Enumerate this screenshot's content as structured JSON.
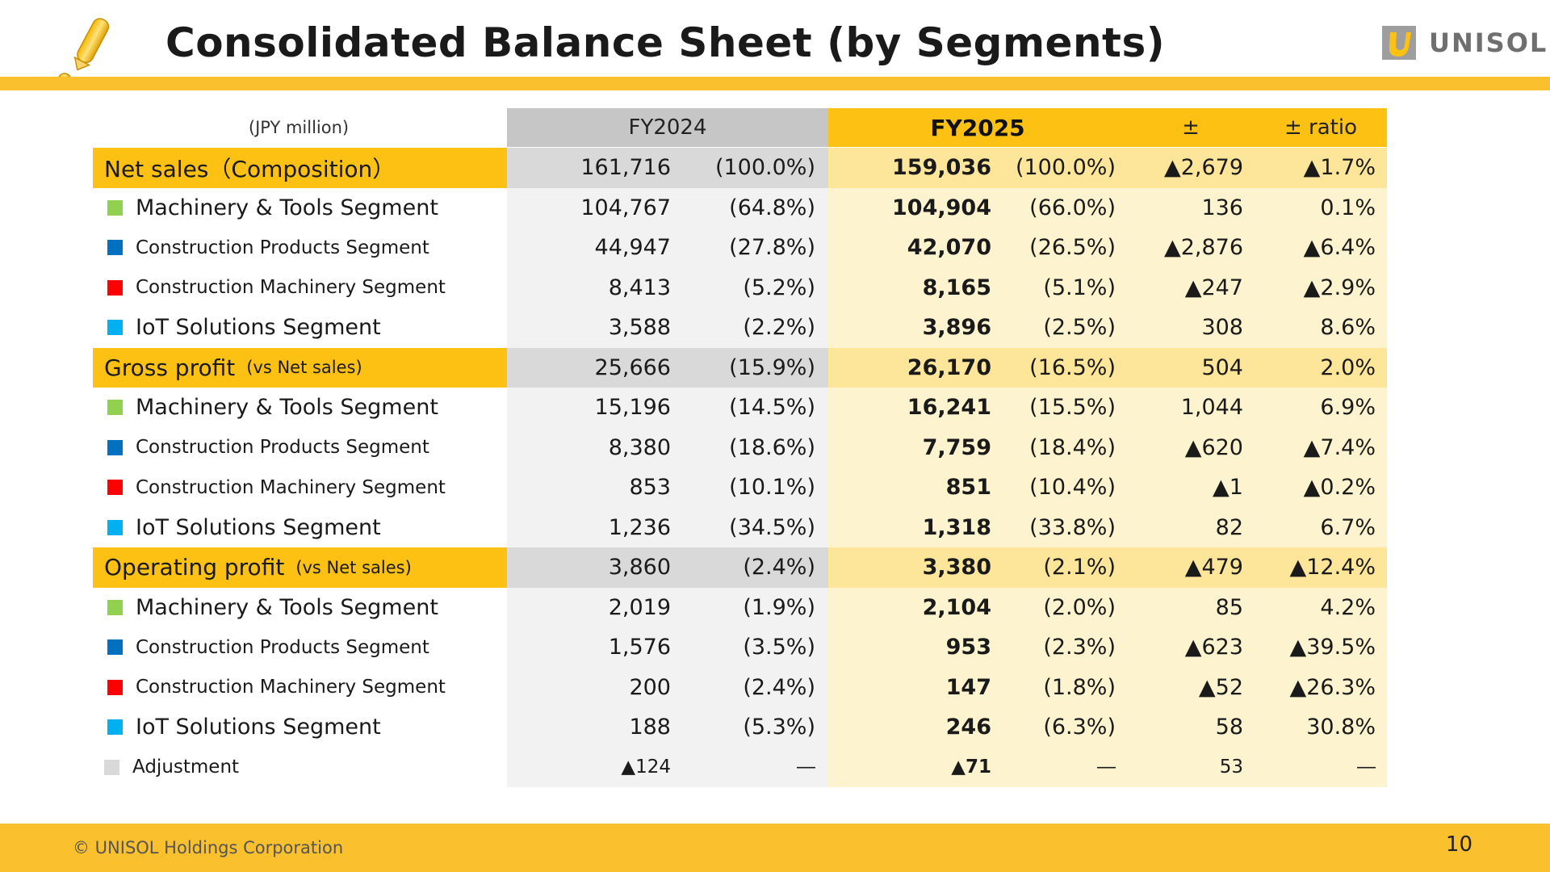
{
  "header": {
    "title": "Consolidated Balance Sheet (by Segments)",
    "logo_text": "UNISOL"
  },
  "table": {
    "unit": "(JPY million)",
    "columns": {
      "fy2024": "FY2024",
      "fy2025": "FY2025",
      "diff": "±",
      "ratio": "± ratio"
    },
    "rows": [
      {
        "kind": "main",
        "label": "Net sales（Composition）",
        "note": "",
        "v24": "161,716",
        "p24": "(100.0%)",
        "v25": "159,036",
        "p25": "(100.0%)",
        "diff": "▲2,679",
        "ratio": "▲1.7%"
      },
      {
        "kind": "sub",
        "label": "Machinery & Tools Segment",
        "size": "large",
        "color": "#92d050",
        "v24": "104,767",
        "p24": "(64.8%)",
        "v25": "104,904",
        "p25": "(66.0%)",
        "diff": "136",
        "ratio": "0.1%"
      },
      {
        "kind": "sub",
        "label": "Construction Products Segment",
        "size": "small",
        "color": "#0070c0",
        "v24": "44,947",
        "p24": "(27.8%)",
        "v25": "42,070",
        "p25": "(26.5%)",
        "diff": "▲2,876",
        "ratio": "▲6.4%"
      },
      {
        "kind": "sub",
        "label": "Construction Machinery Segment",
        "size": "small",
        "color": "#ff0000",
        "v24": "8,413",
        "p24": "(5.2%)",
        "v25": "8,165",
        "p25": "(5.1%)",
        "diff": "▲247",
        "ratio": "▲2.9%"
      },
      {
        "kind": "sub",
        "label": "IoT Solutions Segment",
        "size": "large",
        "color": "#00b0f0",
        "v24": "3,588",
        "p24": "(2.2%)",
        "v25": "3,896",
        "p25": "(2.5%)",
        "diff": "308",
        "ratio": "8.6%"
      },
      {
        "kind": "main",
        "label": "Gross profit",
        "note": "(vs Net sales)",
        "v24": "25,666",
        "p24": "(15.9%)",
        "v25": "26,170",
        "p25": "(16.5%)",
        "diff": "504",
        "ratio": "2.0%"
      },
      {
        "kind": "sub",
        "label": "Machinery & Tools Segment",
        "size": "large",
        "color": "#92d050",
        "v24": "15,196",
        "p24": "(14.5%)",
        "v25": "16,241",
        "p25": "(15.5%)",
        "diff": "1,044",
        "ratio": "6.9%"
      },
      {
        "kind": "sub",
        "label": "Construction Products Segment",
        "size": "small",
        "color": "#0070c0",
        "v24": "8,380",
        "p24": "(18.6%)",
        "v25": "7,759",
        "p25": "(18.4%)",
        "diff": "▲620",
        "ratio": "▲7.4%"
      },
      {
        "kind": "sub",
        "label": "Construction Machinery Segment",
        "size": "small",
        "color": "#ff0000",
        "v24": "853",
        "p24": "(10.1%)",
        "v25": "851",
        "p25": "(10.4%)",
        "diff": "▲1",
        "ratio": "▲0.2%"
      },
      {
        "kind": "sub",
        "label": "IoT Solutions Segment",
        "size": "large",
        "color": "#00b0f0",
        "v24": "1,236",
        "p24": "(34.5%)",
        "v25": "1,318",
        "p25": "(33.8%)",
        "diff": "82",
        "ratio": "6.7%"
      },
      {
        "kind": "main",
        "label": "Operating profit",
        "note": "(vs Net sales)",
        "v24": "3,860",
        "p24": "(2.4%)",
        "v25": "3,380",
        "p25": "(2.1%)",
        "diff": "▲479",
        "ratio": "▲12.4%"
      },
      {
        "kind": "sub",
        "label": "Machinery & Tools Segment",
        "size": "large",
        "color": "#92d050",
        "v24": "2,019",
        "p24": "(1.9%)",
        "v25": "2,104",
        "p25": "(2.0%)",
        "diff": "85",
        "ratio": "4.2%"
      },
      {
        "kind": "sub",
        "label": "Construction Products Segment",
        "size": "small",
        "color": "#0070c0",
        "v24": "1,576",
        "p24": "(3.5%)",
        "v25": "953",
        "p25": "(2.3%)",
        "diff": "▲623",
        "ratio": "▲39.5%"
      },
      {
        "kind": "sub",
        "label": "Construction Machinery Segment",
        "size": "small",
        "color": "#ff0000",
        "v24": "200",
        "p24": "(2.4%)",
        "v25": "147",
        "p25": "(1.8%)",
        "diff": "▲52",
        "ratio": "▲26.3%"
      },
      {
        "kind": "sub",
        "label": "IoT Solutions Segment",
        "size": "large",
        "color": "#00b0f0",
        "v24": "188",
        "p24": "(5.3%)",
        "v25": "246",
        "p25": "(6.3%)",
        "diff": "58",
        "ratio": "30.8%"
      },
      {
        "kind": "adj",
        "label": "Adjustment",
        "size": "small",
        "color": "#d9d9d9",
        "v24": "▲124",
        "p24": "―",
        "v25": "▲71",
        "p25": "―",
        "diff": "53",
        "ratio": "―"
      }
    ]
  },
  "footer": {
    "copyright": "© UNISOL Holdings Corporation",
    "page_number": "10"
  },
  "colors": {
    "accent_yellow": "#fbc02d",
    "header_yellow": "#fdc114",
    "fy2025_band": "#fef3cf",
    "fy2024_band": "#f2f2f2"
  }
}
